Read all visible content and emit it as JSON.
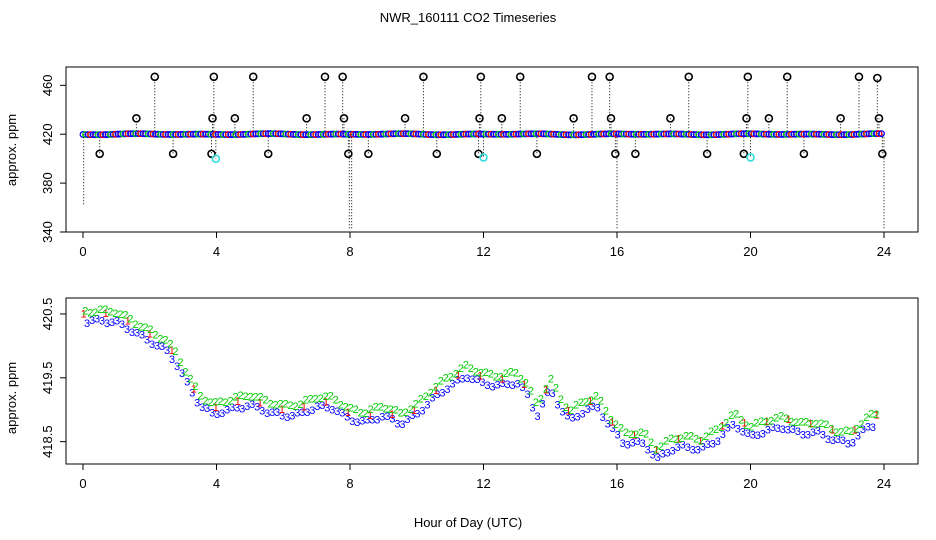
{
  "title": "NWR_160111  CO2 Timeseries",
  "xlabel": "Hour of Day (UTC)",
  "colors": {
    "qc_black": "#000000",
    "qc_cyan": "#33dddd",
    "series_1": "#ff0000",
    "series_2": "#00cc00",
    "series_3": "#0000ff"
  },
  "chart_data": [
    {
      "type": "scatter",
      "name": "top-panel",
      "ylabel": "approx. ppm",
      "xlim": [
        0,
        24
      ],
      "ylim": [
        340,
        475
      ],
      "x_ticks": [
        0,
        4,
        8,
        12,
        16,
        20,
        24
      ],
      "y_ticks": [
        340,
        380,
        420,
        460
      ],
      "baseline_ppm": 420,
      "flag_high": [
        {
          "x": 1.6,
          "y": 433
        },
        {
          "x": 2.15,
          "y": 467
        },
        {
          "x": 3.88,
          "y": 433
        },
        {
          "x": 3.92,
          "y": 467
        },
        {
          "x": 4.55,
          "y": 433
        },
        {
          "x": 5.1,
          "y": 467
        },
        {
          "x": 6.7,
          "y": 433
        },
        {
          "x": 7.25,
          "y": 467
        },
        {
          "x": 7.78,
          "y": 467
        },
        {
          "x": 7.82,
          "y": 433
        },
        {
          "x": 9.65,
          "y": 433
        },
        {
          "x": 10.2,
          "y": 467
        },
        {
          "x": 11.92,
          "y": 467
        },
        {
          "x": 11.88,
          "y": 433
        },
        {
          "x": 12.55,
          "y": 433
        },
        {
          "x": 13.1,
          "y": 467
        },
        {
          "x": 14.7,
          "y": 433
        },
        {
          "x": 15.25,
          "y": 467
        },
        {
          "x": 15.78,
          "y": 467
        },
        {
          "x": 15.82,
          "y": 433
        },
        {
          "x": 17.6,
          "y": 433
        },
        {
          "x": 18.15,
          "y": 467
        },
        {
          "x": 19.88,
          "y": 433
        },
        {
          "x": 19.92,
          "y": 467
        },
        {
          "x": 20.55,
          "y": 433
        },
        {
          "x": 21.1,
          "y": 467
        },
        {
          "x": 22.7,
          "y": 433
        },
        {
          "x": 23.25,
          "y": 467
        },
        {
          "x": 23.8,
          "y": 466
        },
        {
          "x": 23.85,
          "y": 433
        }
      ],
      "flag_low": [
        {
          "x": 0.5,
          "y": 404
        },
        {
          "x": 2.7,
          "y": 404
        },
        {
          "x": 3.85,
          "y": 404
        },
        {
          "x": 5.55,
          "y": 404
        },
        {
          "x": 7.95,
          "y": 404
        },
        {
          "x": 8.55,
          "y": 404
        },
        {
          "x": 10.6,
          "y": 404
        },
        {
          "x": 11.85,
          "y": 404
        },
        {
          "x": 13.6,
          "y": 404
        },
        {
          "x": 15.95,
          "y": 404
        },
        {
          "x": 16.55,
          "y": 404
        },
        {
          "x": 18.7,
          "y": 404
        },
        {
          "x": 19.8,
          "y": 404
        },
        {
          "x": 21.6,
          "y": 404
        },
        {
          "x": 23.95,
          "y": 404
        }
      ],
      "cyan_points": [
        {
          "x": 3.98,
          "y": 400
        },
        {
          "x": 12.0,
          "y": 401
        },
        {
          "x": 20.0,
          "y": 401
        }
      ],
      "spikes_down": [
        {
          "x": 0.02,
          "y": 362
        },
        {
          "x": 7.98,
          "y": 343
        },
        {
          "x": 8.05,
          "y": 343
        },
        {
          "x": 16.0,
          "y": 342
        },
        {
          "x": 24.0,
          "y": 343
        }
      ]
    },
    {
      "type": "scatter",
      "name": "bottom-panel",
      "ylabel": "approx. ppm",
      "xlim": [
        0,
        24
      ],
      "ylim": [
        418.15,
        420.75
      ],
      "x_ticks": [
        0,
        4,
        8,
        12,
        16,
        20,
        24
      ],
      "y_ticks": [
        418.5,
        419.5,
        420.5
      ],
      "series": [
        {
          "name": "1",
          "offset": 0.05
        },
        {
          "name": "2",
          "offset": 0.09
        },
        {
          "name": "3",
          "offset": -0.07
        }
      ],
      "x": [
        0,
        0.5,
        1,
        1.5,
        2,
        2.5,
        2.8,
        3.2,
        3.5,
        3.9,
        4.2,
        4.6,
        5.0,
        5.5,
        6,
        6.5,
        7,
        7.5,
        8,
        8.5,
        9,
        9.5,
        10,
        10.5,
        11,
        11.5,
        12,
        12.5,
        13,
        13.3,
        13.6,
        14,
        14.3,
        14.6,
        15,
        15.4,
        15.8,
        16.2,
        16.8,
        17.2,
        17.6,
        18,
        18.5,
        19,
        19.5,
        20,
        20.5,
        21,
        21.5,
        22,
        22.5,
        23,
        23.5,
        23.8
      ],
      "values": [
        420.45,
        420.47,
        420.45,
        420.3,
        420.15,
        420.0,
        419.8,
        419.4,
        419.15,
        419.0,
        419.05,
        419.1,
        419.15,
        419.05,
        418.98,
        419.0,
        419.12,
        419.1,
        418.92,
        418.88,
        418.98,
        418.85,
        419.0,
        419.25,
        419.45,
        419.6,
        419.48,
        419.45,
        419.5,
        419.32,
        418.98,
        419.4,
        419.1,
        418.9,
        419.05,
        419.12,
        418.8,
        418.55,
        418.55,
        418.3,
        418.45,
        418.5,
        418.45,
        418.6,
        418.85,
        418.65,
        418.75,
        418.8,
        418.7,
        418.72,
        418.6,
        418.55,
        418.8,
        418.85
      ]
    }
  ]
}
